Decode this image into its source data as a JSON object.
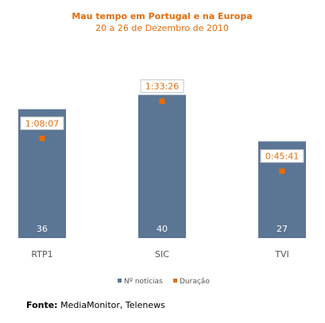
{
  "chart_data": {
    "type": "bar",
    "title": "Mau tempo em Portugal e na Europa",
    "subtitle": "20 a 26 de Dezembro de 2010",
    "categories": [
      "RTP1",
      "SIC",
      "TVI"
    ],
    "series": [
      {
        "name": "Nº notícias",
        "values": [
          36,
          40,
          27
        ],
        "color": "#5b7594"
      },
      {
        "name": "Duração",
        "values": [
          "1:08:07",
          "1:33:26",
          "0:45:41"
        ],
        "minutes": [
          68.1,
          93.4,
          45.7
        ],
        "color": "#e46c0a"
      }
    ],
    "ylim": [
      0,
      45
    ],
    "y2lim": [
      0,
      110
    ],
    "grid": false,
    "legend_position": "bottom"
  },
  "source": {
    "label": "Fonte:",
    "text": "MediaMonitor, Telenews"
  },
  "colors": {
    "title": "#e46c0a",
    "bar": "#5b7594",
    "marker": "#e46c0a",
    "label_box_border": "#c7c7c7"
  }
}
